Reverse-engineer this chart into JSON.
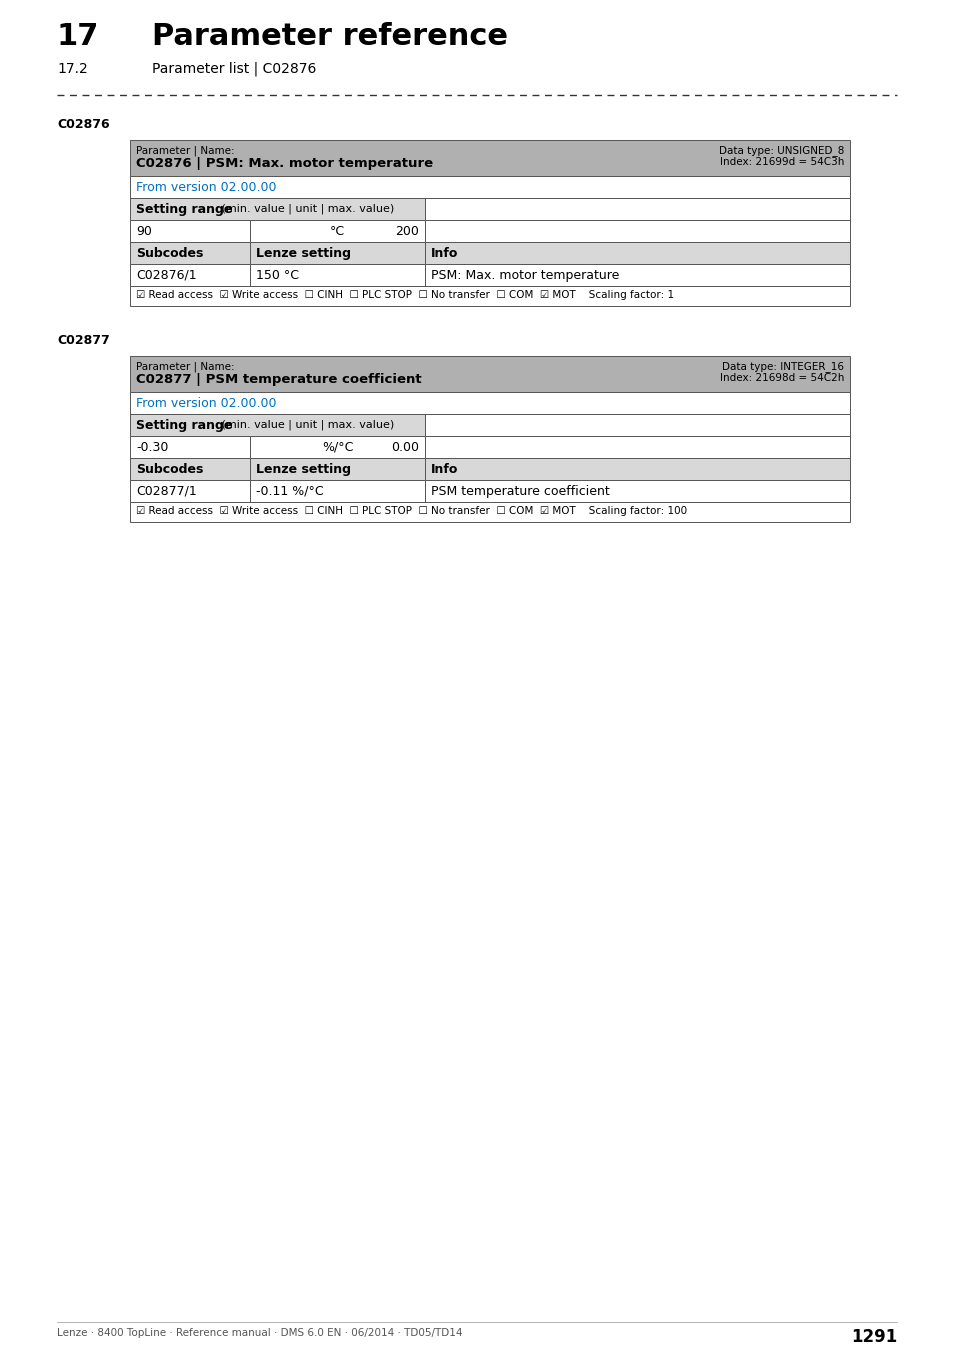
{
  "title_number": "17",
  "title_text": "Parameter reference",
  "subtitle_number": "17.2",
  "subtitle_text": "Parameter list | C02876",
  "section1_label": "C02876",
  "section2_label": "C02877",
  "table1": {
    "param_label": "Parameter | Name:",
    "param_name": "C02876 | PSM: Max. motor temperature",
    "data_type": "Data type: UNSIGNED_8",
    "index": "Index: 21699d = 54C3h",
    "from_version": "From version 02.00.00",
    "setting_range_bold": "Setting range",
    "setting_range_normal": " (min. value | unit | max. value)",
    "min_value": "90",
    "unit": "°C",
    "max_value": "200",
    "subcodes_header": "Subcodes",
    "lenze_setting_header": "Lenze setting",
    "info_header": "Info",
    "subcode": "C02876/1",
    "lenze_setting": "150 °C",
    "info": "PSM: Max. motor temperature",
    "footer": "☑ Read access  ☑ Write access  ☐ CINH  ☐ PLC STOP  ☐ No transfer  ☐ COM  ☑ MOT    Scaling factor: 1"
  },
  "table2": {
    "param_label": "Parameter | Name:",
    "param_name": "C02877 | PSM temperature coefficient",
    "data_type": "Data type: INTEGER_16",
    "index": "Index: 21698d = 54C2h",
    "from_version": "From version 02.00.00",
    "setting_range_bold": "Setting range",
    "setting_range_normal": " (min. value | unit | max. value)",
    "min_value": "-0.30",
    "unit": "%/°C",
    "max_value": "0.00",
    "subcodes_header": "Subcodes",
    "lenze_setting_header": "Lenze setting",
    "info_header": "Info",
    "subcode": "C02877/1",
    "lenze_setting": "-0.11 %/°C",
    "info": "PSM temperature coefficient",
    "footer": "☑ Read access  ☑ Write access  ☐ CINH  ☐ PLC STOP  ☐ No transfer  ☐ COM  ☑ MOT    Scaling factor: 100"
  },
  "footer_text": "Lenze · 8400 TopLine · Reference manual · DMS 6.0 EN · 06/2014 · TD05/TD14",
  "page_number": "1291",
  "bg_color": "#ffffff",
  "header_bg": "#b0b0b0",
  "row_bg_light": "#d8d8d8",
  "row_bg_white": "#ffffff",
  "blue_color": "#0070c0",
  "text_color": "#000000",
  "border_color": "#555555",
  "dash_color": "#333333"
}
